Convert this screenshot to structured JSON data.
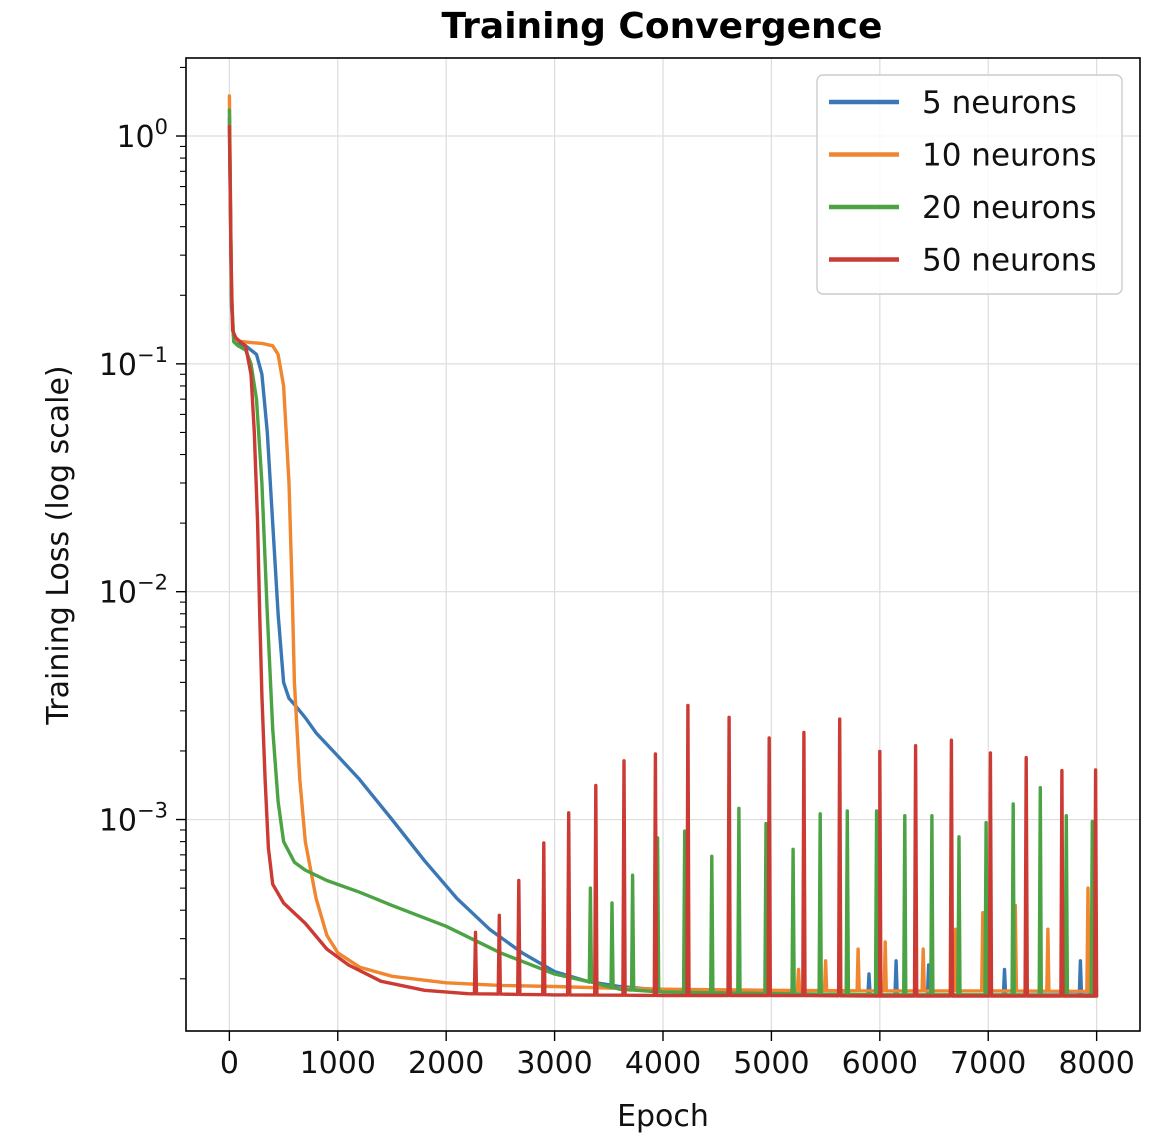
{
  "chart_data": {
    "type": "line",
    "title": "Training Convergence",
    "xlabel": "Epoch",
    "ylabel": "Training Loss (log scale)",
    "xlim": [
      -400,
      8400
    ],
    "ylim": [
      0.000118,
      2.2
    ],
    "yscale": "log",
    "grid": true,
    "legend_position": "top-right",
    "x_ticks": [
      0,
      1000,
      2000,
      3000,
      4000,
      5000,
      6000,
      7000,
      8000
    ],
    "x_tick_labels": [
      "0",
      "1000",
      "2000",
      "3000",
      "4000",
      "5000",
      "6000",
      "7000",
      "8000"
    ],
    "y_ticks": [
      {
        "value": 1,
        "base": "10",
        "exp": "0"
      },
      {
        "value": 0.1,
        "base": "10",
        "exp": "−1"
      },
      {
        "value": 0.01,
        "base": "10",
        "exp": "−2"
      },
      {
        "value": 0.001,
        "base": "10",
        "exp": "−3"
      }
    ],
    "series": [
      {
        "name": "5 neurons",
        "color": "#3a78b5",
        "points": [
          [
            0,
            1.2
          ],
          [
            20,
            0.18
          ],
          [
            40,
            0.13
          ],
          [
            80,
            0.122
          ],
          [
            150,
            0.12
          ],
          [
            250,
            0.11
          ],
          [
            300,
            0.09
          ],
          [
            350,
            0.05
          ],
          [
            400,
            0.02
          ],
          [
            450,
            0.008
          ],
          [
            500,
            0.004
          ],
          [
            550,
            0.0034
          ],
          [
            600,
            0.0032
          ],
          [
            700,
            0.0028
          ],
          [
            800,
            0.0024
          ],
          [
            1000,
            0.0019
          ],
          [
            1200,
            0.0015
          ],
          [
            1500,
            0.001
          ],
          [
            1800,
            0.00066
          ],
          [
            2100,
            0.00045
          ],
          [
            2400,
            0.00033
          ],
          [
            2700,
            0.00026
          ],
          [
            3000,
            0.000215
          ],
          [
            3300,
            0.000195
          ],
          [
            3600,
            0.000185
          ],
          [
            4000,
            0.000178
          ],
          [
            5000,
            0.000172
          ],
          [
            6000,
            0.00017
          ],
          [
            7000,
            0.00017
          ],
          [
            8000,
            0.00017
          ]
        ],
        "spikes": [
          [
            5900,
            0.00021
          ],
          [
            6150,
            0.00024
          ],
          [
            6450,
            0.00023
          ],
          [
            7150,
            0.00022
          ],
          [
            7850,
            0.00024
          ],
          [
            7950,
            0.00028
          ]
        ]
      },
      {
        "name": "10 neurons",
        "color": "#f0862f",
        "points": [
          [
            0,
            1.5
          ],
          [
            20,
            0.2
          ],
          [
            40,
            0.13
          ],
          [
            80,
            0.126
          ],
          [
            200,
            0.124
          ],
          [
            300,
            0.123
          ],
          [
            400,
            0.12
          ],
          [
            450,
            0.11
          ],
          [
            500,
            0.08
          ],
          [
            550,
            0.03
          ],
          [
            580,
            0.01
          ],
          [
            600,
            0.004
          ],
          [
            650,
            0.0015
          ],
          [
            700,
            0.0008
          ],
          [
            800,
            0.00045
          ],
          [
            900,
            0.00031
          ],
          [
            1000,
            0.00026
          ],
          [
            1200,
            0.000225
          ],
          [
            1500,
            0.000205
          ],
          [
            2000,
            0.000192
          ],
          [
            2500,
            0.000187
          ],
          [
            3000,
            0.000185
          ],
          [
            3500,
            0.000182
          ],
          [
            4000,
            0.00018
          ],
          [
            5000,
            0.000178
          ],
          [
            6000,
            0.000177
          ],
          [
            7000,
            0.000177
          ],
          [
            8000,
            0.000176
          ]
        ],
        "spikes": [
          [
            5250,
            0.00022
          ],
          [
            5500,
            0.00024
          ],
          [
            5800,
            0.00027
          ],
          [
            6050,
            0.00029
          ],
          [
            6400,
            0.00027
          ],
          [
            6700,
            0.00033
          ],
          [
            6950,
            0.00039
          ],
          [
            7250,
            0.00042
          ],
          [
            7550,
            0.00033
          ],
          [
            7920,
            0.0005
          ]
        ]
      },
      {
        "name": "20 neurons",
        "color": "#4ba343",
        "points": [
          [
            0,
            1.3
          ],
          [
            20,
            0.2
          ],
          [
            40,
            0.125
          ],
          [
            80,
            0.12
          ],
          [
            150,
            0.115
          ],
          [
            200,
            0.1
          ],
          [
            250,
            0.07
          ],
          [
            300,
            0.03
          ],
          [
            350,
            0.008
          ],
          [
            400,
            0.0025
          ],
          [
            450,
            0.0012
          ],
          [
            500,
            0.0008
          ],
          [
            600,
            0.00065
          ],
          [
            700,
            0.0006
          ],
          [
            900,
            0.00054
          ],
          [
            1200,
            0.00048
          ],
          [
            1500,
            0.00042
          ],
          [
            2000,
            0.00034
          ],
          [
            2500,
            0.00026
          ],
          [
            3000,
            0.00021
          ],
          [
            3300,
            0.000195
          ],
          [
            3600,
            0.00018
          ],
          [
            4000,
            0.000175
          ],
          [
            5000,
            0.000172
          ],
          [
            6000,
            0.00017
          ],
          [
            7000,
            0.00017
          ],
          [
            8000,
            0.000168
          ]
        ],
        "spikes": [
          [
            3330,
            0.0005
          ],
          [
            3530,
            0.00043
          ],
          [
            3720,
            0.00057
          ],
          [
            3950,
            0.00083
          ],
          [
            4200,
            0.00089
          ],
          [
            4450,
            0.00069
          ],
          [
            4700,
            0.00112
          ],
          [
            4950,
            0.00096
          ],
          [
            5200,
            0.00074
          ],
          [
            5450,
            0.00106
          ],
          [
            5700,
            0.00109
          ],
          [
            5970,
            0.00109
          ],
          [
            6230,
            0.00104
          ],
          [
            6480,
            0.00104
          ],
          [
            6730,
            0.00084
          ],
          [
            6980,
            0.00097
          ],
          [
            7230,
            0.00117
          ],
          [
            7480,
            0.00138
          ],
          [
            7720,
            0.00104
          ],
          [
            7960,
            0.00098
          ]
        ]
      },
      {
        "name": "50 neurons",
        "color": "#cb3b33",
        "points": [
          [
            0,
            1.1
          ],
          [
            15,
            0.3
          ],
          [
            30,
            0.14
          ],
          [
            60,
            0.13
          ],
          [
            100,
            0.125
          ],
          [
            150,
            0.12
          ],
          [
            200,
            0.09
          ],
          [
            230,
            0.05
          ],
          [
            260,
            0.02
          ],
          [
            280,
            0.008
          ],
          [
            300,
            0.0035
          ],
          [
            330,
            0.0015
          ],
          [
            360,
            0.00075
          ],
          [
            400,
            0.00052
          ],
          [
            500,
            0.00043
          ],
          [
            700,
            0.00035
          ],
          [
            900,
            0.00027
          ],
          [
            1100,
            0.00023
          ],
          [
            1400,
            0.000195
          ],
          [
            1800,
            0.000178
          ],
          [
            2200,
            0.000172
          ],
          [
            3000,
            0.00017
          ],
          [
            4000,
            0.000169
          ],
          [
            5000,
            0.000169
          ],
          [
            6000,
            0.000168
          ],
          [
            7000,
            0.000168
          ],
          [
            8000,
            0.000168
          ]
        ],
        "spikes": [
          [
            2270,
            0.00032
          ],
          [
            2490,
            0.00038
          ],
          [
            2670,
            0.00054
          ],
          [
            2900,
            0.00079
          ],
          [
            3130,
            0.00107
          ],
          [
            3380,
            0.00141
          ],
          [
            3640,
            0.00181
          ],
          [
            3930,
            0.00194
          ],
          [
            4230,
            0.00317
          ],
          [
            4610,
            0.00281
          ],
          [
            4980,
            0.00228
          ],
          [
            5300,
            0.00241
          ],
          [
            5630,
            0.00276
          ],
          [
            6000,
            0.00199
          ],
          [
            6330,
            0.00211
          ],
          [
            6660,
            0.00223
          ],
          [
            7020,
            0.00196
          ],
          [
            7350,
            0.00187
          ],
          [
            7680,
            0.00164
          ],
          [
            7990,
            0.00165
          ]
        ]
      }
    ]
  }
}
